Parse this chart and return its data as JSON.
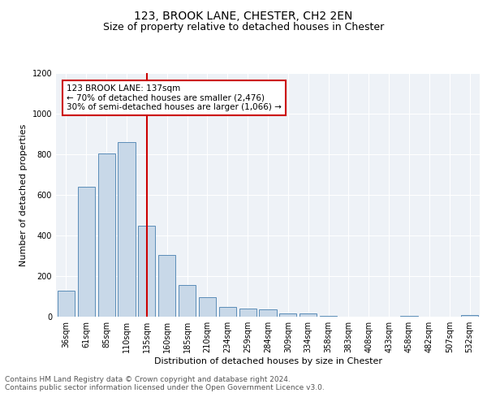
{
  "title1": "123, BROOK LANE, CHESTER, CH2 2EN",
  "title2": "Size of property relative to detached houses in Chester",
  "xlabel": "Distribution of detached houses by size in Chester",
  "ylabel": "Number of detached properties",
  "categories": [
    "36sqm",
    "61sqm",
    "85sqm",
    "110sqm",
    "135sqm",
    "160sqm",
    "185sqm",
    "210sqm",
    "234sqm",
    "259sqm",
    "284sqm",
    "309sqm",
    "334sqm",
    "358sqm",
    "383sqm",
    "408sqm",
    "433sqm",
    "458sqm",
    "482sqm",
    "507sqm",
    "532sqm"
  ],
  "values": [
    130,
    640,
    805,
    860,
    448,
    305,
    155,
    95,
    50,
    42,
    35,
    18,
    18,
    5,
    0,
    0,
    0,
    5,
    0,
    0,
    10
  ],
  "bar_color": "#c8d8e8",
  "bar_edge_color": "#5b8db8",
  "bar_linewidth": 0.7,
  "vline_x_index": 4,
  "vline_color": "#cc0000",
  "annotation_text": "123 BROOK LANE: 137sqm\n← 70% of detached houses are smaller (2,476)\n30% of semi-detached houses are larger (1,066) →",
  "annotation_box_edgecolor": "#cc0000",
  "annotation_fontsize": 7.5,
  "ylim": [
    0,
    1200
  ],
  "yticks": [
    0,
    200,
    400,
    600,
    800,
    1000,
    1200
  ],
  "background_color": "#eef2f7",
  "footer_text": "Contains HM Land Registry data © Crown copyright and database right 2024.\nContains public sector information licensed under the Open Government Licence v3.0.",
  "title_fontsize": 10,
  "subtitle_fontsize": 9,
  "axis_label_fontsize": 8,
  "tick_fontsize": 7
}
